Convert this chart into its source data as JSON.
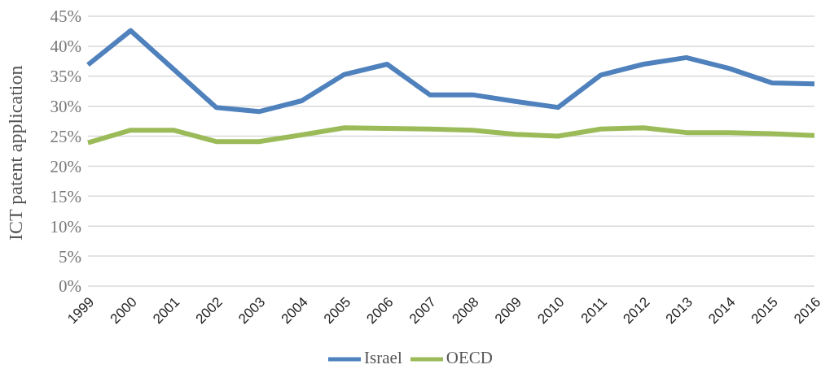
{
  "chart_data": {
    "type": "line",
    "ylabel": "ICT patent application",
    "categories": [
      "1999",
      "2000",
      "2001",
      "2002",
      "2003",
      "2004",
      "2005",
      "2006",
      "2007",
      "2008",
      "2009",
      "2010",
      "2011",
      "2012",
      "2013",
      "2014",
      "2015",
      "2016"
    ],
    "series": [
      {
        "name": "OECD",
        "color": "#9bbb59",
        "values": [
          23.9,
          26.0,
          26.0,
          24.1,
          24.1,
          25.2,
          26.4,
          26.3,
          26.2,
          26.0,
          25.3,
          25.0,
          26.2,
          26.4,
          25.6,
          25.6,
          25.4,
          25.1
        ]
      },
      {
        "name": "Israel",
        "color": "#4f81bd",
        "values": [
          36.9,
          42.6,
          36.2,
          29.8,
          29.1,
          30.9,
          35.3,
          37.0,
          31.9,
          31.9,
          30.8,
          29.8,
          35.2,
          37.0,
          38.1,
          36.3,
          33.9,
          33.7
        ]
      }
    ],
    "ylim": [
      0,
      45
    ],
    "yticks": [
      {
        "value": 0,
        "label": "0%"
      },
      {
        "value": 5,
        "label": "5%"
      },
      {
        "value": 10,
        "label": "10%"
      },
      {
        "value": 15,
        "label": "15%"
      },
      {
        "value": 20,
        "label": "20%"
      },
      {
        "value": 25,
        "label": "25%"
      },
      {
        "value": 30,
        "label": "30%"
      },
      {
        "value": 35,
        "label": "35%"
      },
      {
        "value": 40,
        "label": "40%"
      },
      {
        "value": 45,
        "label": "45%"
      }
    ],
    "grid": "y",
    "legend": "bottom",
    "marker": "none",
    "line_style": "solid"
  }
}
